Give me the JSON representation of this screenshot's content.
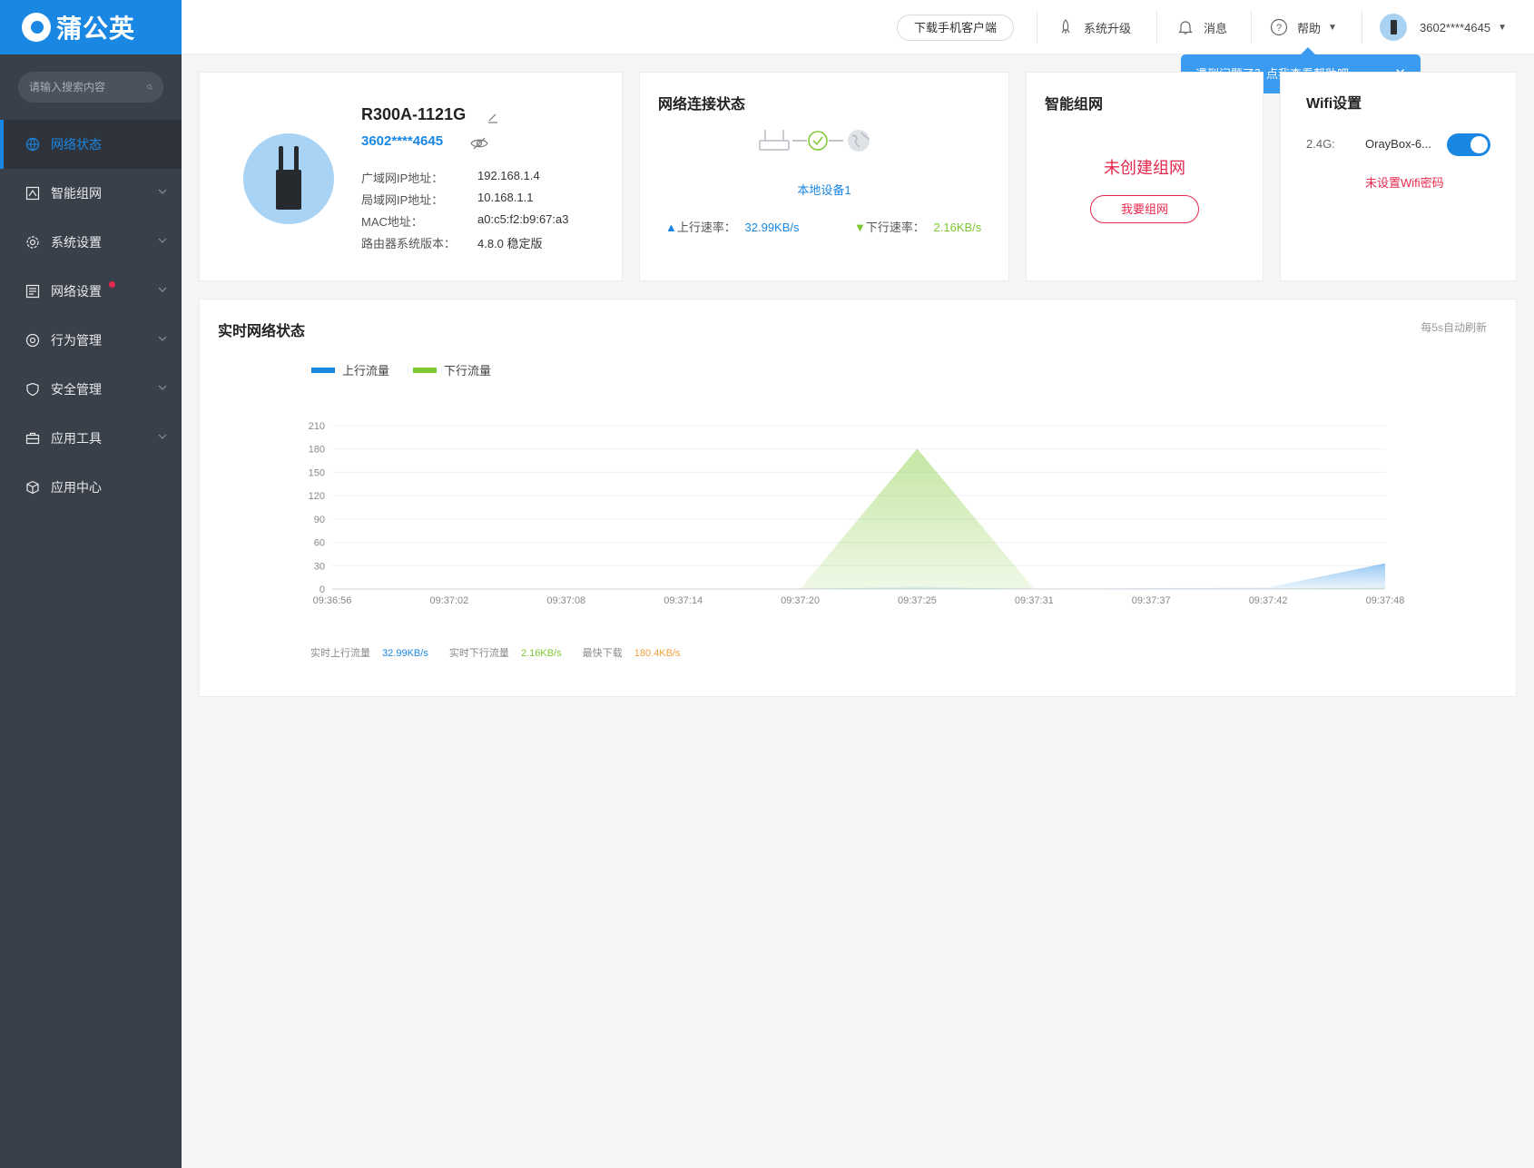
{
  "brand": {
    "name": "蒲公英"
  },
  "search": {
    "placeholder": "请输入搜索内容"
  },
  "sidebar": {
    "items": [
      {
        "label": "网络状态",
        "icon": "globe-icon",
        "active": true,
        "chevron": false,
        "dot": false
      },
      {
        "label": "智能组网",
        "icon": "network-icon",
        "active": false,
        "chevron": true,
        "dot": false
      },
      {
        "label": "系统设置",
        "icon": "gear-icon",
        "active": false,
        "chevron": true,
        "dot": false
      },
      {
        "label": "网络设置",
        "icon": "list-icon",
        "active": false,
        "chevron": true,
        "dot": true
      },
      {
        "label": "行为管理",
        "icon": "behavior-icon",
        "active": false,
        "chevron": true,
        "dot": false
      },
      {
        "label": "安全管理",
        "icon": "shield-icon",
        "active": false,
        "chevron": true,
        "dot": false
      },
      {
        "label": "应用工具",
        "icon": "toolbox-icon",
        "active": false,
        "chevron": true,
        "dot": false
      },
      {
        "label": "应用中心",
        "icon": "cube-icon",
        "active": false,
        "chevron": false,
        "dot": false
      }
    ]
  },
  "header": {
    "download_client": "下载手机客户端",
    "upgrade": "系统升级",
    "messages": "消息",
    "help": "帮助",
    "account": "3602****4645"
  },
  "tooltip": {
    "text": "遇到问题了？点我查看帮助吧~",
    "close": "✕"
  },
  "device": {
    "name": "R300A-1121G",
    "id": "3602****4645",
    "wan_ip_label": "广域网IP地址：",
    "wan_ip": "192.168.1.4",
    "lan_ip_label": "局域网IP地址：",
    "lan_ip": "10.168.1.1",
    "mac_label": "MAC地址：",
    "mac": "a0:c5:f2:b9:67:a3",
    "version_label": "路由器系统版本：",
    "version": "4.8.0 稳定版"
  },
  "connection": {
    "title": "网络连接状态",
    "device_label": "本地设备1",
    "up_label": "上行速率：",
    "up_value": "32.99KB/s",
    "down_label": "下行速率：",
    "down_value": "2.16KB/s"
  },
  "smart_group": {
    "title": "智能组网",
    "status": "未创建组网",
    "button": "我要组网"
  },
  "wifi": {
    "title": "Wifi设置",
    "band": "2.4G:",
    "ssid": "OrayBox-6...",
    "enabled": true,
    "warning": "未设置Wifi密码"
  },
  "realtime": {
    "title": "实时网络状态",
    "refresh_note": "每5s自动刷新",
    "stat_up_label": "实时上行流量",
    "stat_up_value": "32.99KB/s",
    "stat_down_label": "实时下行流量",
    "stat_down_value": "2.16KB/s",
    "stat_max_label": "最快下载",
    "stat_max_value": "180.4KB/s"
  },
  "colors": {
    "accent": "#1a87e3",
    "up": "#1a87e3",
    "down": "#7dc832",
    "danger": "#e6284d",
    "max": "#f0a040"
  },
  "chart_data": {
    "type": "area",
    "x": [
      "09:36:56",
      "09:37:02",
      "09:37:08",
      "09:37:14",
      "09:37:20",
      "09:37:25",
      "09:37:31",
      "09:37:37",
      "09:37:42",
      "09:37:48"
    ],
    "ylim": [
      0,
      210
    ],
    "yticks": [
      0,
      30,
      60,
      90,
      120,
      150,
      180,
      210
    ],
    "series": [
      {
        "name": "上行流量",
        "color": "#1a87e3",
        "values": [
          0,
          0,
          0,
          0,
          0,
          3,
          0,
          1,
          2,
          33
        ]
      },
      {
        "name": "下行流量",
        "color": "#7dc832",
        "values": [
          0,
          0,
          0,
          0,
          0,
          180.4,
          0,
          0,
          0,
          2.16
        ]
      }
    ],
    "grid": true,
    "legend": "top-left"
  }
}
